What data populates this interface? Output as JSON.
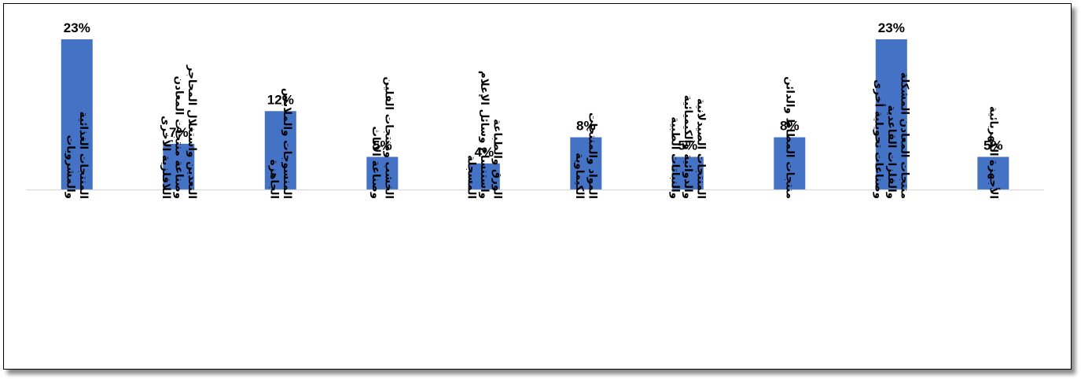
{
  "chart_data": {
    "type": "bar",
    "title": "",
    "xlabel": "",
    "ylabel": "",
    "ylim": [
      0,
      25
    ],
    "grid": false,
    "legend": "none",
    "bar_color": "#4472C4",
    "axis_color": "#D9D9D9",
    "value_unit": "%",
    "categories": [
      [
        "المنتجات الغذائية",
        "والمشروبات"
      ],
      [
        "التعدين واستغلال المحاجر",
        "وصناعة منتجات المعادن",
        "اللافلزية الأخرى"
      ],
      [
        "المنسوجات والملابس",
        "الجاهزة"
      ],
      [
        "الخشب ومنتجات الفلين",
        "وصناعة الأثاث"
      ],
      [
        "الورق والطباعة",
        "واستنساخ وسائل الإعلام",
        "المسجلة"
      ],
      [
        "المواد والمنتجات",
        "الكيماوية"
      ],
      [
        "المنتجات الصيدلانية",
        "والدوائية والكيميائية",
        "والنباتات الطبية"
      ],
      [
        "منتجات المطاط والدائن"
      ],
      [
        "منتجات المعادن المشكلة",
        "والفلزات القاعدية",
        "وصناعات تحويلية أخرى"
      ],
      [
        "الأجهزة الكهربائية"
      ]
    ],
    "values": [
      23,
      7,
      12,
      5,
      4,
      8,
      5,
      8,
      23,
      5
    ],
    "data_labels": [
      "23%",
      "7%",
      "12%",
      "5%",
      "4%",
      "8%",
      "5%",
      "8%",
      "23%",
      "5%"
    ]
  }
}
